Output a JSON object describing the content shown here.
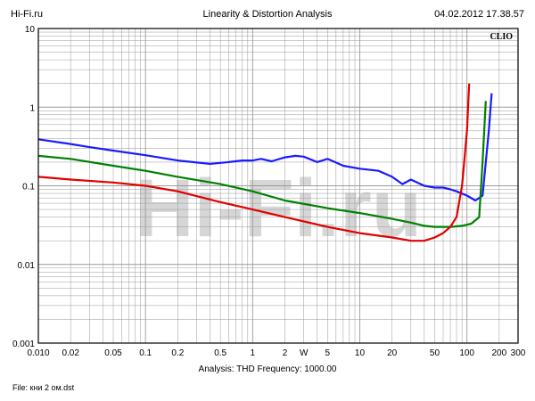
{
  "header": {
    "site": "Hi-Fi.ru",
    "title": "Linearity & Distortion Analysis",
    "datetime": "04.02.2012 17.38.57"
  },
  "brand": "CLIO",
  "watermark": "Hi-Fi.ru",
  "footer": {
    "analysis_label": "Analysis: THD   Frequency: 1000.00",
    "file_label": "File: кни 2 ом.dst"
  },
  "chart_data": {
    "type": "line",
    "title": "Linearity & Distortion Analysis",
    "xscale": "log",
    "yscale": "log",
    "xlim": [
      0.01,
      300
    ],
    "ylim": [
      0.001,
      10
    ],
    "grid": true,
    "xticks": [
      "0.010",
      "0.02",
      "0.05",
      "0.1",
      "0.2",
      "0.5",
      "1",
      "2",
      "W",
      "5",
      "10",
      "20",
      "50",
      "100",
      "200",
      "300"
    ],
    "yticks": [
      "10",
      "1",
      "0.1",
      "0.01",
      "0.001"
    ],
    "series": [
      {
        "color": "#1a1aff",
        "x": [
          0.01,
          0.02,
          0.03,
          0.05,
          0.1,
          0.2,
          0.4,
          0.6,
          0.8,
          1.0,
          1.2,
          1.5,
          2.0,
          2.5,
          3.0,
          4.0,
          5.0,
          7.0,
          10.0,
          15.0,
          20.0,
          25.0,
          30.0,
          40.0,
          50.0,
          60.0,
          70.0,
          80.0,
          100.0,
          120.0,
          140.0,
          160.0,
          170.0
        ],
        "y": [
          0.39,
          0.34,
          0.31,
          0.28,
          0.245,
          0.21,
          0.19,
          0.2,
          0.21,
          0.21,
          0.22,
          0.205,
          0.23,
          0.24,
          0.235,
          0.2,
          0.22,
          0.18,
          0.165,
          0.155,
          0.13,
          0.105,
          0.12,
          0.1,
          0.095,
          0.095,
          0.09,
          0.085,
          0.075,
          0.065,
          0.075,
          0.5,
          1.5
        ]
      },
      {
        "color": "#008000",
        "x": [
          0.01,
          0.02,
          0.05,
          0.1,
          0.2,
          0.5,
          1.0,
          2.0,
          5.0,
          10.0,
          20.0,
          30.0,
          40.0,
          50.0,
          70.0,
          90.0,
          110.0,
          130.0,
          140.0,
          150.0
        ],
        "y": [
          0.24,
          0.22,
          0.18,
          0.155,
          0.13,
          0.105,
          0.085,
          0.065,
          0.052,
          0.045,
          0.038,
          0.034,
          0.031,
          0.03,
          0.03,
          0.031,
          0.033,
          0.04,
          0.2,
          1.2
        ]
      },
      {
        "color": "#e00000",
        "x": [
          0.01,
          0.02,
          0.05,
          0.1,
          0.2,
          0.5,
          1.0,
          2.0,
          5.0,
          10.0,
          20.0,
          30.0,
          40.0,
          50.0,
          60.0,
          70.0,
          80.0,
          90.0,
          100.0,
          105.0
        ],
        "y": [
          0.13,
          0.12,
          0.11,
          0.1,
          0.085,
          0.062,
          0.05,
          0.04,
          0.03,
          0.025,
          0.022,
          0.02,
          0.02,
          0.022,
          0.025,
          0.03,
          0.04,
          0.1,
          0.5,
          2.0
        ]
      }
    ]
  }
}
